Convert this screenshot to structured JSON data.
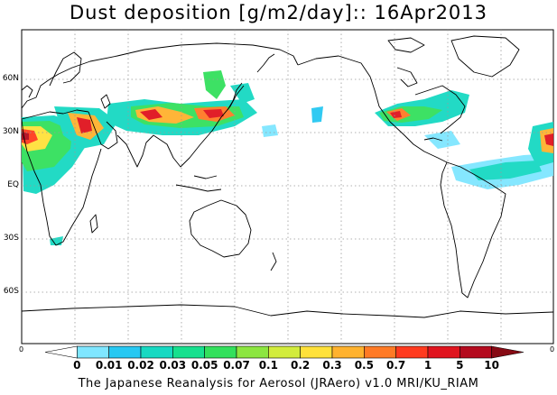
{
  "title": "Dust deposition [g/m2/day]:: 16Apr2013",
  "lat_labels": [
    "60N",
    "30N",
    "EQ",
    "30S",
    "60S"
  ],
  "scale_left": "0",
  "scale_right": "0",
  "colorbar": {
    "ticks": [
      "0",
      "0.01",
      "0.02",
      "0.03",
      "0.05",
      "0.07",
      "0.1",
      "0.2",
      "0.3",
      "0.5",
      "0.7",
      "1",
      "5",
      "10"
    ],
    "colors": [
      "#ffffff",
      "#7fe6ff",
      "#27c8f2",
      "#17d9c2",
      "#17e08e",
      "#33e05c",
      "#8ce640",
      "#d2ec3c",
      "#ffe13a",
      "#ffb22e",
      "#ff7a25",
      "#ff3a1e",
      "#e0141e",
      "#b40a1e",
      "#870a14"
    ]
  },
  "credit": "The Japanese Reanalysis for Aerosol (JRAero) v1.0 MRI/KU_RIAM"
}
